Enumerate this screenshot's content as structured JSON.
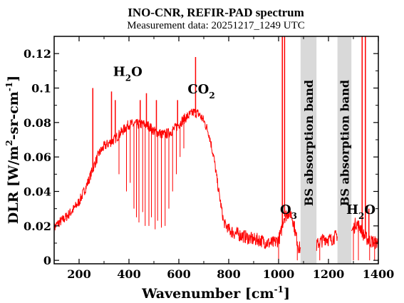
{
  "chart_data": {
    "type": "line",
    "title": "INO-CNR, REFIR-PAD spectrum",
    "subtitle": "Measurement data: 20251217_1249 UTC",
    "xlabel": "Wavenumber [cm",
    "xlabel_sup": "-1",
    "xlabel_end": "]",
    "ylabel": "DLR [W/m",
    "ylabel_sup1": "2",
    "ylabel_mid": "-sr-cm",
    "ylabel_sup2": "-1",
    "ylabel_end": "]",
    "xlim": [
      100,
      1400
    ],
    "ylim": [
      -0.002,
      0.13
    ],
    "xticks": [
      200,
      400,
      600,
      800,
      1000,
      1200,
      1400
    ],
    "xtick_labels": [
      "200",
      "400",
      "600",
      "800",
      "1000",
      "1200",
      "1400"
    ],
    "yticks": [
      0,
      0.02,
      0.04,
      0.06,
      0.08,
      0.1,
      0.12
    ],
    "ytick_labels": [
      "0",
      "0.02",
      "0.04",
      "0.06",
      "0.08",
      "0.1",
      "0.12"
    ],
    "grid": false,
    "line_color": "#ff0000",
    "bands": [
      {
        "x": [
          1088,
          1152
        ],
        "label": "BS absorption band",
        "color": "#d9d9d9"
      },
      {
        "x": [
          1236,
          1292
        ],
        "label": "BS absorption band",
        "color": "#d9d9d9"
      }
    ],
    "annotations": [
      {
        "main": "H",
        "sub": "2",
        "rest": "O",
        "x": 395,
        "y": 0.107
      },
      {
        "main": "CO",
        "sub": "2",
        "rest": "",
        "x": 690,
        "y": 0.097
      },
      {
        "main": "O",
        "sub": "3",
        "rest": "",
        "x": 1040,
        "y": 0.027
      },
      {
        "main": "H",
        "sub": "2",
        "rest": "O",
        "x": 1330,
        "y": 0.027
      }
    ],
    "x": [
      100,
      120,
      140,
      160,
      180,
      200,
      220,
      240,
      260,
      280,
      300,
      320,
      340,
      360,
      380,
      400,
      420,
      440,
      460,
      480,
      500,
      520,
      540,
      560,
      580,
      600,
      620,
      640,
      660,
      680,
      700,
      720,
      740,
      760,
      780,
      800,
      820,
      840,
      860,
      880,
      900,
      920,
      940,
      960,
      980,
      1000,
      1010,
      1020,
      1030,
      1040,
      1050,
      1060,
      1070,
      1080,
      1090,
      1150,
      1160,
      1170,
      1180,
      1190,
      1200,
      1210,
      1220,
      1230,
      1240,
      1290,
      1300,
      1310,
      1320,
      1330,
      1340,
      1350,
      1360,
      1370,
      1380,
      1390,
      1400
    ],
    "values": [
      0.019,
      0.022,
      0.024,
      0.027,
      0.03,
      0.034,
      0.04,
      0.047,
      0.055,
      0.062,
      0.066,
      0.068,
      0.07,
      0.073,
      0.076,
      0.079,
      0.079,
      0.079,
      0.079,
      0.078,
      0.075,
      0.074,
      0.073,
      0.074,
      0.076,
      0.079,
      0.082,
      0.084,
      0.086,
      0.085,
      0.081,
      0.074,
      0.06,
      0.04,
      0.022,
      0.018,
      0.016,
      0.015,
      0.014,
      0.013,
      0.012,
      0.012,
      0.011,
      0.01,
      0.01,
      0.012,
      0.016,
      0.025,
      0.026,
      0.028,
      0.027,
      0.022,
      0.014,
      0.008,
      0.006,
      0.008,
      0.01,
      0.011,
      0.012,
      0.013,
      0.012,
      0.012,
      0.013,
      0.014,
      0.016,
      0.017,
      0.018,
      0.022,
      0.02,
      0.019,
      0.015,
      0.013,
      0.012,
      0.011,
      0.011,
      0.01,
      0.011
    ],
    "spikes": [
      {
        "x": 255,
        "y": 0.1
      },
      {
        "x": 330,
        "y": 0.098
      },
      {
        "x": 345,
        "y": 0.093
      },
      {
        "x": 445,
        "y": 0.093
      },
      {
        "x": 470,
        "y": 0.097
      },
      {
        "x": 510,
        "y": 0.093
      },
      {
        "x": 595,
        "y": 0.093
      },
      {
        "x": 667,
        "y": 0.118
      },
      {
        "x": 1015,
        "y": 0.13
      },
      {
        "x": 1024,
        "y": 0.13
      },
      {
        "x": 1335,
        "y": 0.13
      },
      {
        "x": 1348,
        "y": 0.13
      },
      {
        "x": 1362,
        "y": 0.03
      }
    ],
    "dips": [
      {
        "x": 360,
        "y": 0.05
      },
      {
        "x": 390,
        "y": 0.04
      },
      {
        "x": 405,
        "y": 0.045
      },
      {
        "x": 420,
        "y": 0.03
      },
      {
        "x": 430,
        "y": 0.025
      },
      {
        "x": 440,
        "y": 0.022
      },
      {
        "x": 455,
        "y": 0.028
      },
      {
        "x": 465,
        "y": 0.02
      },
      {
        "x": 480,
        "y": 0.02
      },
      {
        "x": 490,
        "y": 0.025
      },
      {
        "x": 505,
        "y": 0.018
      },
      {
        "x": 515,
        "y": 0.023
      },
      {
        "x": 530,
        "y": 0.019
      },
      {
        "x": 545,
        "y": 0.02
      },
      {
        "x": 560,
        "y": 0.03
      },
      {
        "x": 575,
        "y": 0.04
      },
      {
        "x": 590,
        "y": 0.05
      },
      {
        "x": 605,
        "y": 0.06
      },
      {
        "x": 620,
        "y": 0.065
      },
      {
        "x": 1000,
        "y": 0.0
      },
      {
        "x": 1075,
        "y": 0.0
      },
      {
        "x": 1165,
        "y": 0.0
      },
      {
        "x": 1300,
        "y": 0.0
      },
      {
        "x": 1320,
        "y": 0.0
      },
      {
        "x": 1365,
        "y": 0.0
      },
      {
        "x": 1385,
        "y": 0.0
      }
    ]
  }
}
